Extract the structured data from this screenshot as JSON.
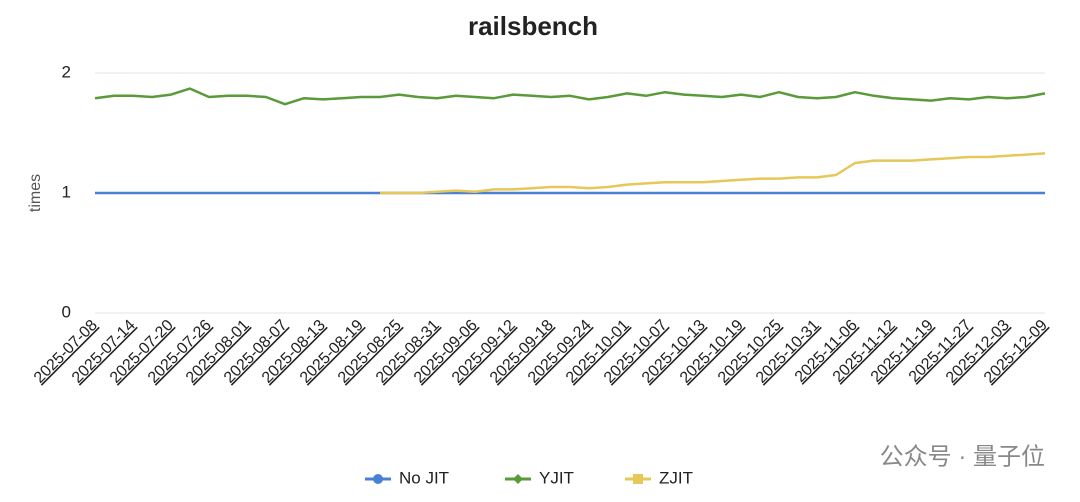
{
  "chart_data": {
    "type": "line",
    "title": "railsbench",
    "y_label": "times",
    "watermark": "公众号 · 量子位",
    "categories": [
      "2025-07-08",
      null,
      "2025-07-14",
      null,
      "2025-07-20",
      null,
      "2025-07-26",
      null,
      "2025-08-01",
      null,
      "2025-08-07",
      null,
      "2025-08-13",
      null,
      "2025-08-19",
      null,
      "2025-08-25",
      null,
      "2025-08-31",
      null,
      "2025-09-06",
      null,
      "2025-09-12",
      null,
      "2025-09-18",
      null,
      "2025-09-24",
      null,
      "2025-10-01",
      null,
      "2025-10-07",
      null,
      "2025-10-13",
      null,
      "2025-10-19",
      null,
      "2025-10-25",
      null,
      "2025-10-31",
      null,
      "2025-11-06",
      null,
      "2025-11-12",
      null,
      "2025-11-19",
      null,
      "2025-11-27",
      null,
      "2025-12-03",
      null,
      "2025-12-09"
    ],
    "series": [
      {
        "name": "No JIT",
        "color": "#4a7fd6",
        "marker": "circle",
        "values": [
          1,
          1,
          1,
          1,
          1,
          1,
          1,
          1,
          1,
          1,
          1,
          1,
          1,
          1,
          1,
          1,
          1,
          1,
          1,
          1,
          1,
          1,
          1,
          1,
          1,
          1,
          1,
          1,
          1,
          1,
          1,
          1,
          1,
          1,
          1,
          1,
          1,
          1,
          1,
          1,
          1,
          1,
          1,
          1,
          1,
          1,
          1,
          1,
          1,
          1,
          1
        ]
      },
      {
        "name": "YJIT",
        "color": "#5a9a3a",
        "marker": "diamond",
        "values": [
          1.79,
          1.81,
          1.81,
          1.8,
          1.82,
          1.87,
          1.8,
          1.81,
          1.81,
          1.8,
          1.74,
          1.79,
          1.78,
          1.79,
          1.8,
          1.8,
          1.82,
          1.8,
          1.79,
          1.81,
          1.8,
          1.79,
          1.82,
          1.81,
          1.8,
          1.81,
          1.78,
          1.8,
          1.83,
          1.81,
          1.84,
          1.82,
          1.81,
          1.8,
          1.82,
          1.8,
          1.84,
          1.8,
          1.79,
          1.8,
          1.84,
          1.81,
          1.79,
          1.78,
          1.77,
          1.79,
          1.78,
          1.8,
          1.79,
          1.8,
          1.83
        ]
      },
      {
        "name": "ZJIT",
        "color": "#e6c75a",
        "marker": "square",
        "values": [
          null,
          null,
          null,
          null,
          null,
          null,
          null,
          null,
          null,
          null,
          null,
          null,
          null,
          null,
          null,
          1.0,
          1.0,
          1.0,
          1.01,
          1.02,
          1.01,
          1.03,
          1.03,
          1.04,
          1.05,
          1.05,
          1.04,
          1.05,
          1.07,
          1.08,
          1.09,
          1.09,
          1.09,
          1.1,
          1.11,
          1.12,
          1.12,
          1.13,
          1.13,
          1.15,
          1.25,
          1.27,
          1.27,
          1.27,
          1.28,
          1.29,
          1.3,
          1.3,
          1.31,
          1.32,
          1.33
        ]
      }
    ],
    "ylim": [
      0,
      2
    ],
    "yticks": [
      0,
      1,
      2
    ],
    "grid": true
  }
}
